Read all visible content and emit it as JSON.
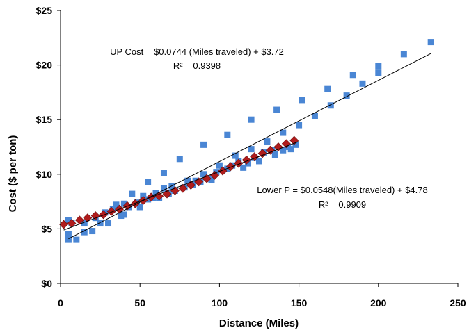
{
  "chart_data": {
    "type": "scatter",
    "xlabel": "Distance (Miles)",
    "ylabel": "Cost ($ per ton)",
    "xlim": [
      0,
      250
    ],
    "ylim": [
      0,
      25
    ],
    "x_ticks": [
      0,
      50,
      100,
      150,
      200,
      250
    ],
    "x_tick_labels": [
      "0",
      "50",
      "100",
      "150",
      "200",
      "250"
    ],
    "y_ticks": [
      0,
      5,
      10,
      15,
      20,
      25
    ],
    "y_tick_labels": [
      "$0",
      "$5",
      "$10",
      "$15",
      "$20",
      "$25"
    ],
    "grid": false,
    "legend": "none",
    "colors": {
      "up": "#4a86d4",
      "lower": "#b01c1c",
      "trend": "#000000"
    },
    "series": [
      {
        "marker": "square",
        "color": "#4a86d4",
        "points": [
          [
            5,
            4.0
          ],
          [
            5,
            4.5
          ],
          [
            5,
            5.8
          ],
          [
            7,
            5.5
          ],
          [
            10,
            4.0
          ],
          [
            15,
            4.7
          ],
          [
            15,
            5.5
          ],
          [
            20,
            4.8
          ],
          [
            22,
            6.0
          ],
          [
            25,
            5.5
          ],
          [
            28,
            6.5
          ],
          [
            30,
            5.5
          ],
          [
            33,
            6.8
          ],
          [
            35,
            7.2
          ],
          [
            38,
            6.2
          ],
          [
            40,
            7.3
          ],
          [
            40,
            6.3
          ],
          [
            43,
            7.0
          ],
          [
            45,
            8.2
          ],
          [
            48,
            7.4
          ],
          [
            50,
            7.0
          ],
          [
            52,
            8.0
          ],
          [
            55,
            7.7
          ],
          [
            55,
            9.3
          ],
          [
            58,
            7.8
          ],
          [
            60,
            8.3
          ],
          [
            62,
            7.8
          ],
          [
            65,
            10.1
          ],
          [
            65,
            8.7
          ],
          [
            68,
            8.2
          ],
          [
            70,
            8.9
          ],
          [
            72,
            8.5
          ],
          [
            75,
            11.4
          ],
          [
            78,
            8.8
          ],
          [
            80,
            9.4
          ],
          [
            83,
            9.0
          ],
          [
            85,
            9.4
          ],
          [
            88,
            9.3
          ],
          [
            90,
            12.7
          ],
          [
            90,
            10.0
          ],
          [
            93,
            9.6
          ],
          [
            95,
            9.5
          ],
          [
            98,
            10.2
          ],
          [
            100,
            10.8
          ],
          [
            102,
            10.4
          ],
          [
            105,
            13.6
          ],
          [
            105,
            10.5
          ],
          [
            108,
            10.8
          ],
          [
            110,
            11.7
          ],
          [
            112,
            11.2
          ],
          [
            115,
            10.6
          ],
          [
            118,
            11.0
          ],
          [
            120,
            15.0
          ],
          [
            120,
            12.3
          ],
          [
            122,
            11.5
          ],
          [
            125,
            11.2
          ],
          [
            128,
            12.0
          ],
          [
            130,
            13.0
          ],
          [
            133,
            12.2
          ],
          [
            135,
            11.8
          ],
          [
            136,
            15.9
          ],
          [
            140,
            13.8
          ],
          [
            140,
            12.2
          ],
          [
            143,
            12.5
          ],
          [
            145,
            12.3
          ],
          [
            148,
            12.7
          ],
          [
            150,
            14.5
          ],
          [
            152,
            16.8
          ],
          [
            160,
            15.3
          ],
          [
            168,
            17.8
          ],
          [
            170,
            16.3
          ],
          [
            180,
            17.2
          ],
          [
            184,
            19.1
          ],
          [
            190,
            18.3
          ],
          [
            200,
            19.9
          ],
          [
            200,
            19.3
          ],
          [
            216,
            21.0
          ],
          [
            233,
            22.1
          ]
        ]
      },
      {
        "marker": "diamond",
        "color": "#b01c1c",
        "points": [
          [
            2,
            5.4
          ],
          [
            7,
            5.5
          ],
          [
            12,
            5.8
          ],
          [
            17,
            6.0
          ],
          [
            22,
            6.2
          ],
          [
            27,
            6.3
          ],
          [
            32,
            6.6
          ],
          [
            37,
            6.8
          ],
          [
            42,
            7.1
          ],
          [
            47,
            7.3
          ],
          [
            52,
            7.6
          ],
          [
            57,
            7.9
          ],
          [
            62,
            8.0
          ],
          [
            67,
            8.2
          ],
          [
            72,
            8.5
          ],
          [
            77,
            8.7
          ],
          [
            82,
            9.0
          ],
          [
            87,
            9.3
          ],
          [
            92,
            9.6
          ],
          [
            97,
            9.9
          ],
          [
            102,
            10.3
          ],
          [
            107,
            10.7
          ],
          [
            112,
            11.0
          ],
          [
            117,
            11.3
          ],
          [
            122,
            11.6
          ],
          [
            127,
            11.9
          ],
          [
            132,
            12.2
          ],
          [
            137,
            12.5
          ],
          [
            142,
            12.8
          ],
          [
            147,
            13.1
          ]
        ]
      }
    ],
    "trendlines": [
      {
        "slope": 0.0744,
        "intercept": 3.72,
        "x_range": [
          5,
          233
        ]
      },
      {
        "slope": 0.0548,
        "intercept": 4.78,
        "x_range": [
          2,
          150
        ]
      }
    ],
    "annotations": {
      "up_equation": "UP Cost = $0.0744 (Miles traveled) + $3.72",
      "up_r2": "R² = 0.9398",
      "lower_equation": "Lower P = $0.0548(Miles traveled) + $4.78",
      "lower_r2": "R² = 0.9909"
    }
  }
}
